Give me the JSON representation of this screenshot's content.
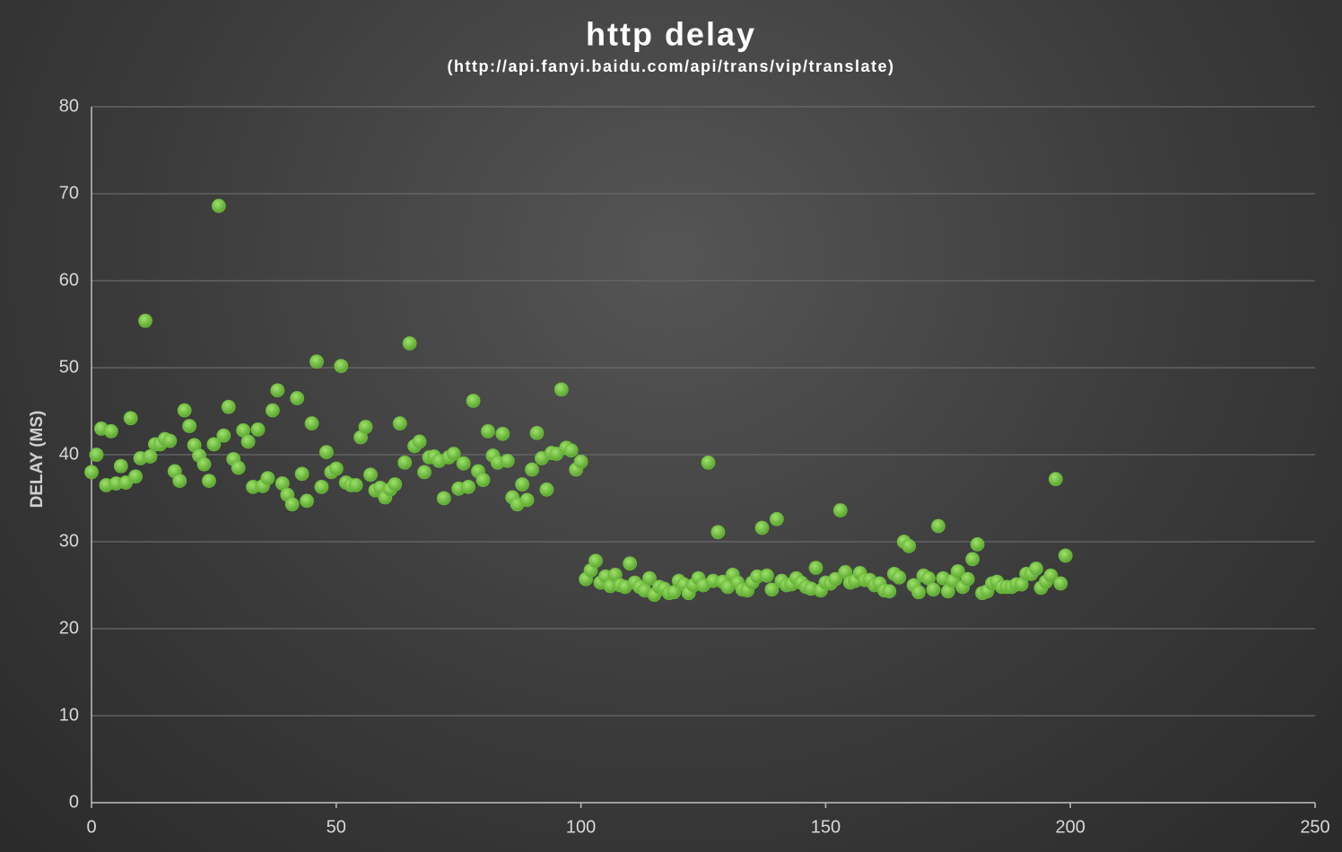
{
  "chart_data": {
    "type": "scatter",
    "title": "http delay",
    "subtitle": "(http://api.fanyi.baidu.com/api/trans/vip/translate)",
    "y_label": "DELAY (MS)",
    "color": "#6cbb3c",
    "grid": true,
    "xlim": [
      0,
      250
    ],
    "xticks": [
      0,
      50,
      100,
      150,
      200,
      250
    ],
    "ylim": [
      0,
      80
    ],
    "yticks": [
      0,
      10,
      20,
      30,
      40,
      50,
      60,
      70,
      80
    ],
    "x": [
      0,
      1,
      2,
      3,
      4,
      5,
      6,
      7,
      8,
      9,
      10,
      11,
      12,
      13,
      14,
      15,
      16,
      17,
      18,
      19,
      20,
      21,
      22,
      23,
      24,
      25,
      26,
      27,
      28,
      29,
      30,
      31,
      32,
      33,
      34,
      35,
      36,
      37,
      38,
      39,
      40,
      41,
      42,
      43,
      44,
      45,
      46,
      47,
      48,
      49,
      50,
      51,
      52,
      53,
      54,
      55,
      56,
      57,
      58,
      59,
      60,
      61,
      62,
      63,
      64,
      65,
      66,
      67,
      68,
      69,
      70,
      71,
      72,
      73,
      74,
      75,
      76,
      77,
      78,
      79,
      80,
      81,
      82,
      83,
      84,
      85,
      86,
      87,
      88,
      89,
      90,
      91,
      92,
      93,
      94,
      95,
      96,
      97,
      98,
      99,
      100,
      101,
      102,
      103,
      104,
      105,
      106,
      107,
      108,
      109,
      110,
      111,
      112,
      113,
      114,
      115,
      116,
      117,
      118,
      119,
      120,
      121,
      122,
      123,
      124,
      125,
      126,
      127,
      128,
      129,
      130,
      131,
      132,
      133,
      134,
      135,
      136,
      137,
      138,
      139,
      140,
      141,
      142,
      143,
      144,
      145,
      146,
      147,
      148,
      149,
      150,
      151,
      152,
      153,
      154,
      155,
      156,
      157,
      158,
      159,
      160,
      161,
      162,
      163,
      164,
      165,
      166,
      167,
      168,
      169,
      170,
      171,
      172,
      173,
      174,
      175,
      176,
      177,
      178,
      179,
      180,
      181,
      182,
      183,
      184,
      185,
      186,
      187,
      188,
      189,
      190,
      191,
      192,
      193,
      194,
      195,
      196,
      197,
      198,
      199
    ],
    "values": [
      38,
      40,
      43,
      36.5,
      42.7,
      36.7,
      38.7,
      36.8,
      44.2,
      37.5,
      39.6,
      55.4,
      39.8,
      41.2,
      41.2,
      41.8,
      41.6,
      38.1,
      37,
      45.1,
      43.3,
      41.1,
      39.9,
      38.9,
      37,
      41.2,
      68.6,
      42.2,
      45.5,
      39.5,
      38.5,
      42.8,
      41.5,
      36.3,
      42.9,
      36.4,
      37.3,
      45.1,
      47.4,
      36.7,
      35.4,
      34.3,
      46.5,
      37.8,
      34.7,
      43.6,
      50.7,
      36.3,
      40.3,
      38,
      38.4,
      50.2,
      36.8,
      36.5,
      36.5,
      42,
      43.2,
      37.7,
      35.9,
      36.2,
      35.1,
      36,
      36.6,
      43.6,
      39.1,
      52.8,
      41,
      41.5,
      38,
      39.7,
      39.8,
      39.3,
      35,
      39.7,
      40.1,
      36.1,
      39,
      36.3,
      46.2,
      38.1,
      37.1,
      42.7,
      39.9,
      39.1,
      42.4,
      39.3,
      35.1,
      34.3,
      36.6,
      34.8,
      38.3,
      42.5,
      39.6,
      36,
      40.2,
      40.1,
      47.5,
      40.8,
      40.5,
      38.3,
      39.2,
      25.7,
      26.7,
      27.8,
      25.3,
      26,
      24.9,
      26.2,
      25,
      24.8,
      27.5,
      25.3,
      24.8,
      24.4,
      25.8,
      23.9,
      24.8,
      24.6,
      24.1,
      24.2,
      25.5,
      25.1,
      24.1,
      25,
      25.8,
      25,
      39.1,
      25.5,
      31.1,
      25.4,
      24.8,
      26.2,
      25.3,
      24.5,
      24.4,
      25.3,
      26,
      31.6,
      26.1,
      24.5,
      32.6,
      25.5,
      25,
      25.1,
      25.8,
      25.3,
      24.8,
      24.6,
      27,
      24.4,
      25.3,
      25.2,
      25.7,
      33.6,
      26.5,
      25.3,
      25.5,
      26.4,
      25.6,
      25.6,
      25,
      25.2,
      24.4,
      24.3,
      26.3,
      25.9,
      30,
      29.5,
      25,
      24.2,
      26.1,
      25.8,
      24.5,
      31.8,
      25.8,
      24.3,
      25.5,
      26.6,
      24.8,
      25.7,
      28,
      29.7,
      24.1,
      24.3,
      25.2,
      25.4,
      24.8,
      24.8,
      24.8,
      25.1,
      25.1,
      26.3,
      26.3,
      26.9,
      24.7,
      25.4,
      26.1,
      37.2,
      25.2,
      28.4
    ]
  }
}
